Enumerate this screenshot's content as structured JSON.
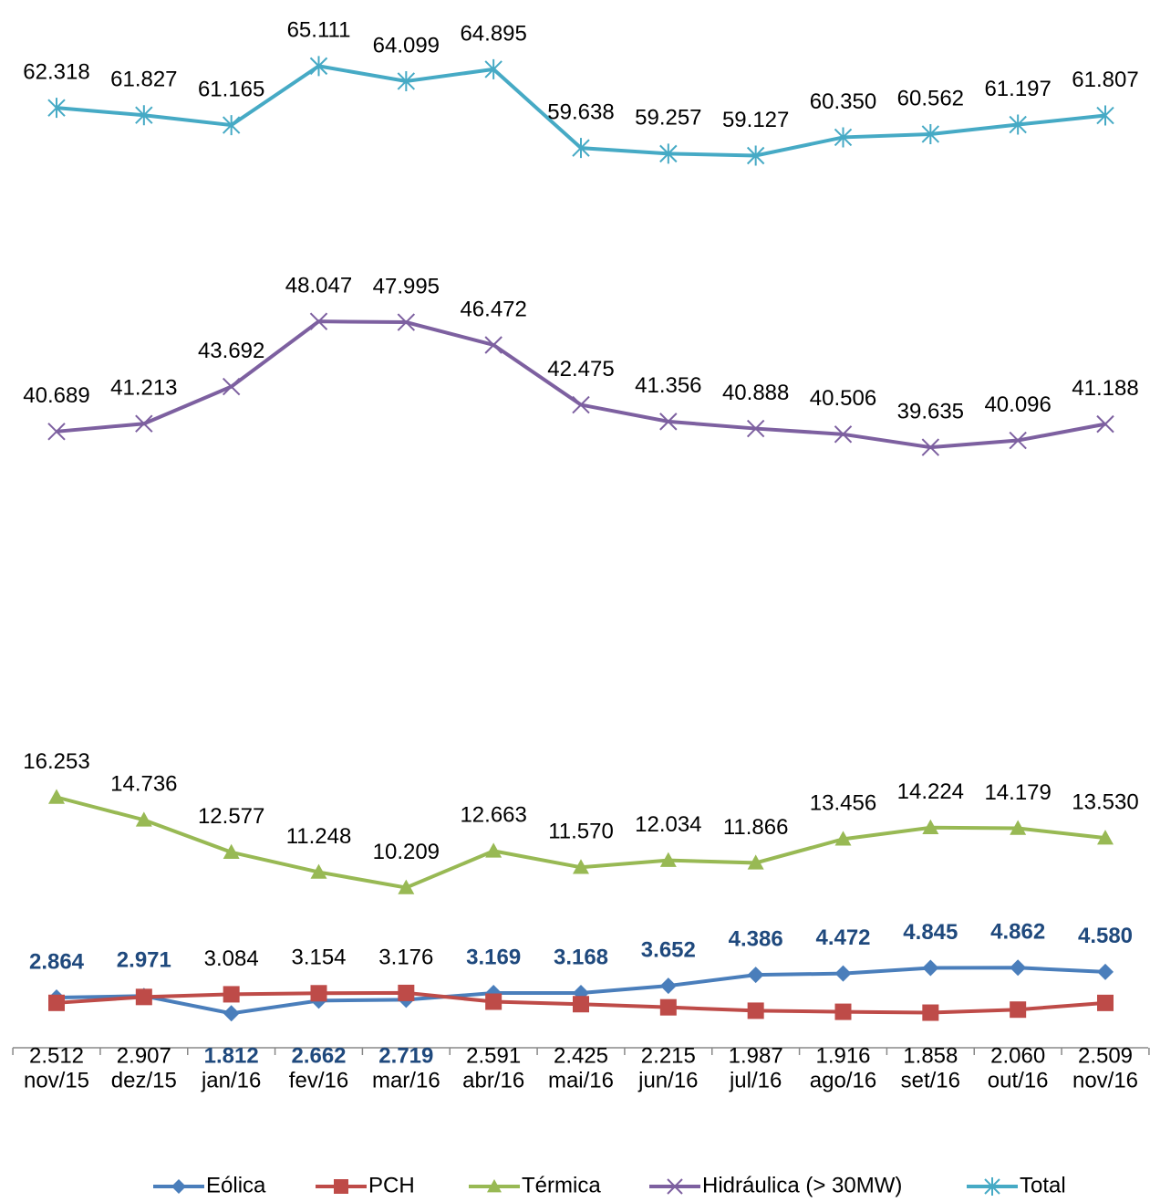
{
  "chart_data": {
    "type": "line",
    "categories": [
      "nov/15",
      "dez/15",
      "jan/16",
      "fev/16",
      "mar/16",
      "abr/16",
      "mai/16",
      "jun/16",
      "jul/16",
      "ago/16",
      "set/16",
      "out/16",
      "nov/16"
    ],
    "ylim": [
      0,
      68000
    ],
    "legend": "bottom",
    "series": [
      {
        "name": "Eólica",
        "color": "#4a7ebb",
        "marker": "diamond",
        "values": [
          2864,
          2971,
          1812,
          2662,
          2719,
          3169,
          3168,
          3652,
          4386,
          4472,
          4845,
          4862,
          4580
        ],
        "value_labels": [
          "2.864",
          "2.971",
          "1.812",
          "2.662",
          "2.719",
          "3.169",
          "3.168",
          "3.652",
          "4.386",
          "4.472",
          "4.845",
          "4.862",
          "4.580"
        ]
      },
      {
        "name": "PCH",
        "color": "#be4b48",
        "marker": "square",
        "values": [
          2512,
          2907,
          3084,
          3154,
          3176,
          2591,
          2425,
          2215,
          1987,
          1916,
          1858,
          2060,
          2509
        ],
        "value_labels": [
          "2.512",
          "2.907",
          "3.084",
          "3.154",
          "3.176",
          "2.591",
          "2.425",
          "2.215",
          "1.987",
          "1.916",
          "1.858",
          "2.060",
          "2.509"
        ]
      },
      {
        "name": "Térmica",
        "color": "#98b954",
        "marker": "triangle",
        "values": [
          16253,
          14736,
          12577,
          11248,
          10209,
          12663,
          11570,
          12034,
          11866,
          13456,
          14224,
          14179,
          13530
        ],
        "value_labels": [
          "16.253",
          "14.736",
          "12.577",
          "11.248",
          "10.209",
          "12.663",
          "11.570",
          "12.034",
          "11.866",
          "13.456",
          "14.224",
          "14.179",
          "13.530"
        ]
      },
      {
        "name": "Hidráulica (> 30MW)",
        "color": "#7d60a0",
        "marker": "x",
        "values": [
          40689,
          41213,
          43692,
          48047,
          47995,
          46472,
          42475,
          41356,
          40888,
          40506,
          39635,
          40096,
          41188
        ],
        "value_labels": [
          "40.689",
          "41.213",
          "43.692",
          "48.047",
          "47.995",
          "46.472",
          "42.475",
          "41.356",
          "40.888",
          "40.506",
          "39.635",
          "40.096",
          "41.188"
        ]
      },
      {
        "name": "Total",
        "color": "#46aac5",
        "marker": "star",
        "values": [
          62318,
          61827,
          61165,
          65111,
          64099,
          64895,
          59638,
          59257,
          59127,
          60350,
          60562,
          61197,
          61807
        ],
        "value_labels": [
          "62.318",
          "61.827",
          "61.165",
          "65.111",
          "64.099",
          "64.895",
          "59.638",
          "59.257",
          "59.127",
          "60.350",
          "60.562",
          "61.197",
          "61.807"
        ]
      }
    ]
  }
}
